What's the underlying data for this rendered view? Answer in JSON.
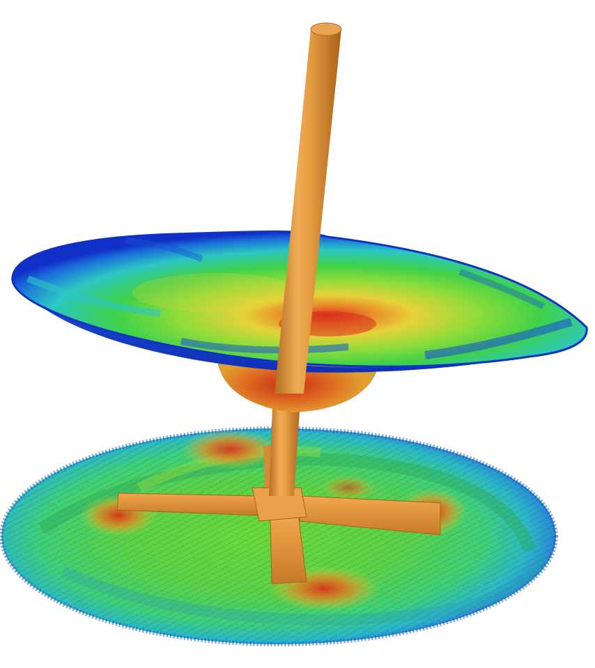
{
  "scene": {
    "subject": "impeller-vortex-simulation",
    "background_color": "#ffffff",
    "colors": {
      "shaft": "#d98a2e",
      "shaft_highlight": "#f2b15c",
      "shaft_shadow": "#a8621c",
      "contour_low": "#1030c8",
      "contour_mid_low": "#2cc6c4",
      "contour_mid": "#3ed14a",
      "contour_mid_high": "#e6d23a",
      "contour_high": "#d8301c"
    }
  }
}
